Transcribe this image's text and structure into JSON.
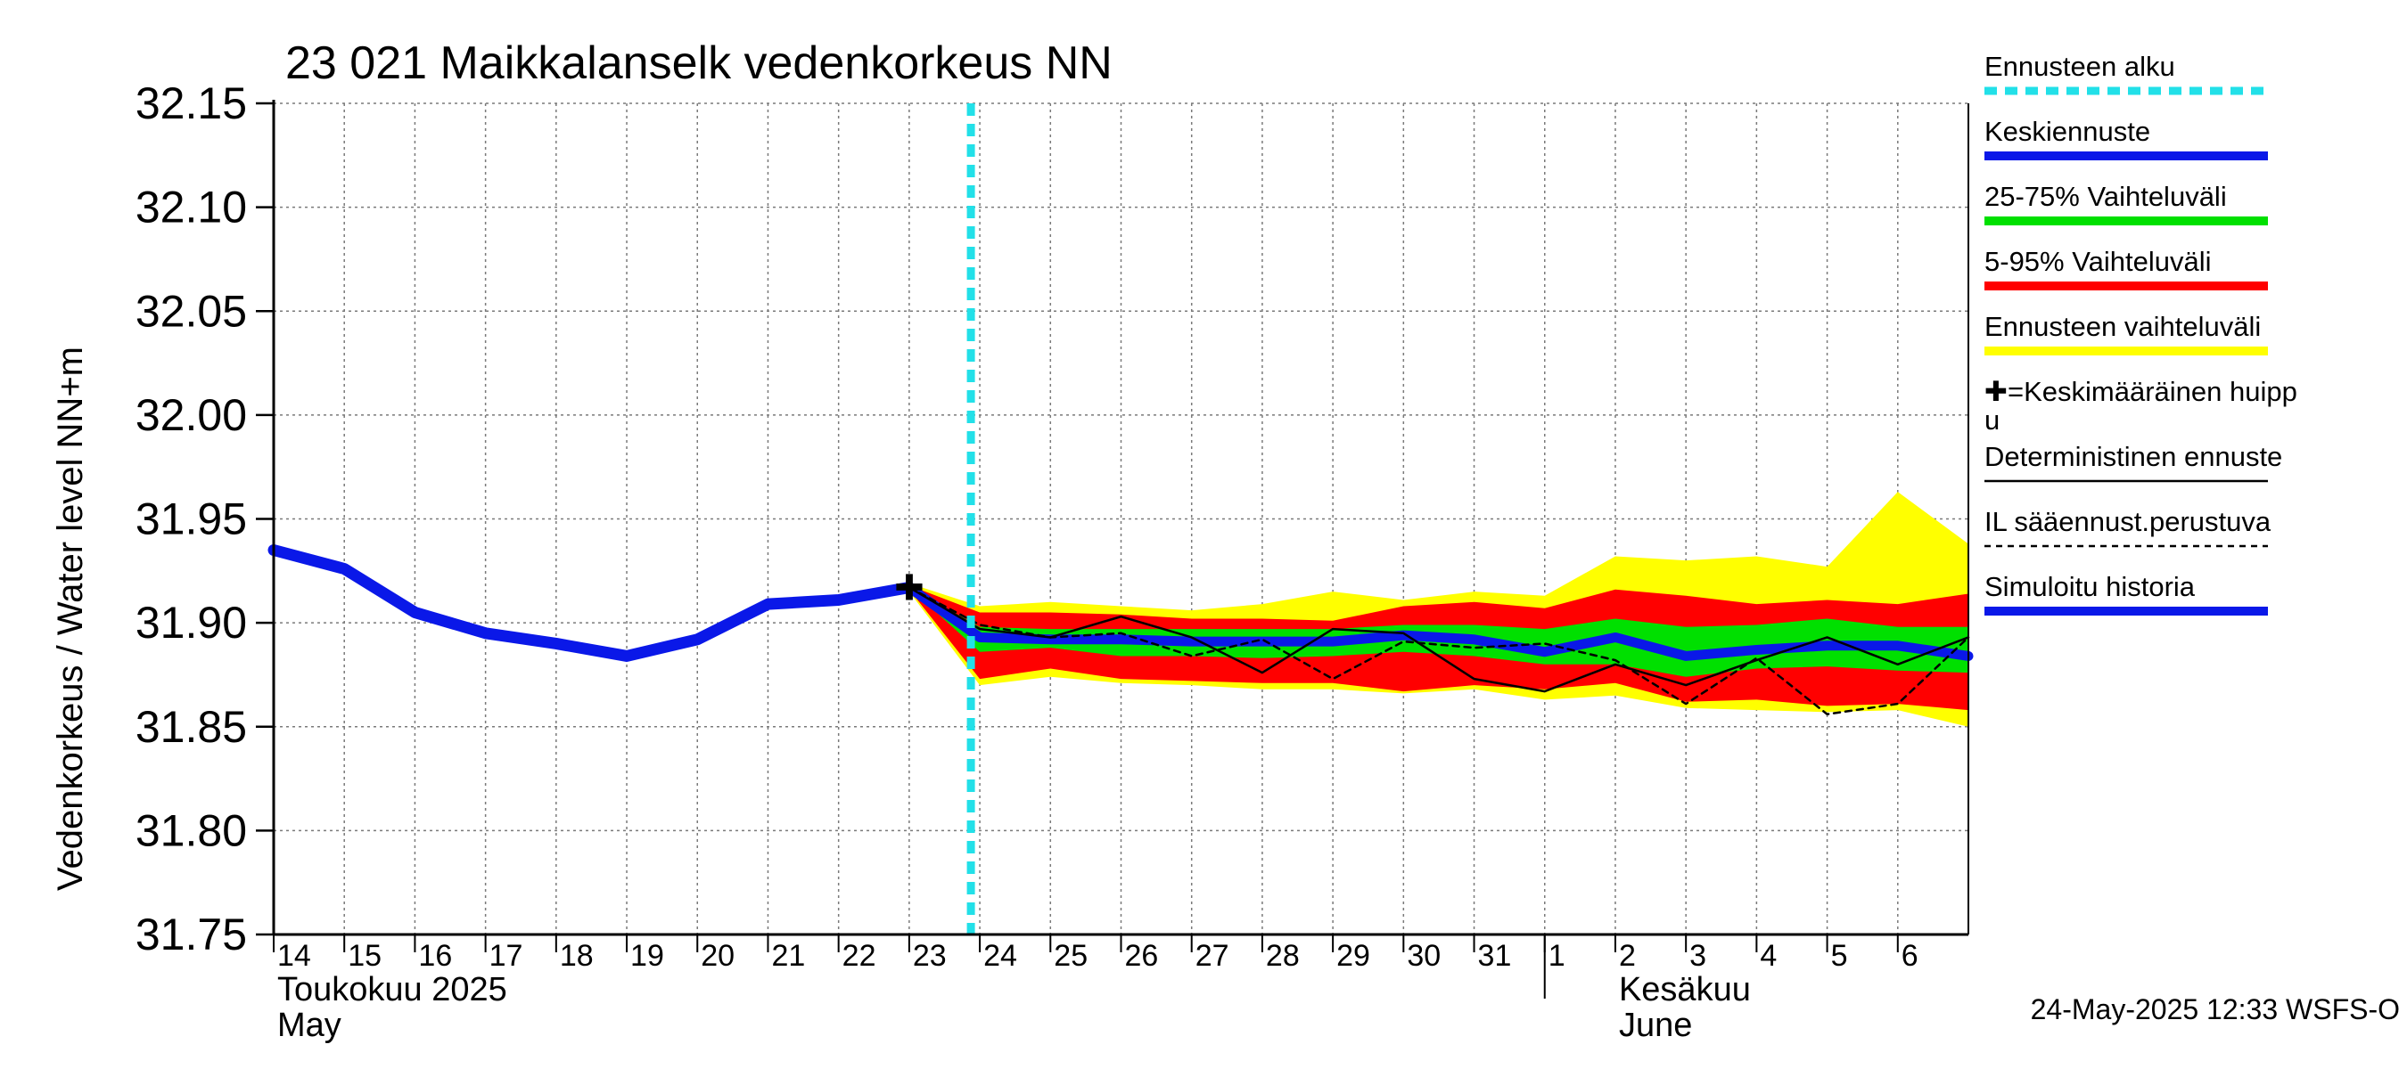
{
  "chart_data": {
    "type": "line",
    "title": "23 021 Maikkalanselk vedenkorkeus NN",
    "ylabel": "Vedenkorkeus / Water level   NN+m",
    "ylim": [
      31.75,
      32.15
    ],
    "y_ticks": [
      "31.75",
      "31.80",
      "31.85",
      "31.90",
      "31.95",
      "32.00",
      "32.05",
      "32.10",
      "32.15"
    ],
    "x_day_labels": [
      "14",
      "15",
      "16",
      "17",
      "18",
      "19",
      "20",
      "21",
      "22",
      "23",
      "24",
      "25",
      "26",
      "27",
      "28",
      "29",
      "30",
      "31",
      "1",
      "2",
      "3",
      "4",
      "5",
      "6"
    ],
    "x_range_days": [
      0,
      24
    ],
    "month_labels": [
      {
        "line1": "Toukokuu  2025",
        "line2": "May",
        "day_index": 0
      },
      {
        "line1": "Kesäkuu",
        "line2": "June",
        "day_index": 19
      }
    ],
    "month_divider_day_index": 18,
    "forecast_start_day_index": 10,
    "grid": true,
    "timestamp": "24-May-2025 12:33 WSFS-O",
    "colors": {
      "forecast_start": "#22e0e8",
      "mean_forecast": "#0a18e8",
      "band_25_75": "#00e000",
      "band_5_95": "#ff0000",
      "band_forecast_range": "#ffff00",
      "deterministic": "#000000",
      "simulated_history": "#0a18e8"
    },
    "legend": [
      {
        "label": "Ennusteen alku",
        "style": "cyan-dashed"
      },
      {
        "label": "Keskiennuste",
        "style": "blue-line"
      },
      {
        "label": "25-75% Vaihteluväli",
        "style": "green-line"
      },
      {
        "label": "5-95% Vaihteluväli",
        "style": "red-line"
      },
      {
        "label": "Ennusteen vaihteluväli",
        "style": "yellow-line"
      },
      {
        "label": "✚=Keskimääräinen huipp",
        "label2": "u",
        "style": "none"
      },
      {
        "label": "Deterministinen ennuste",
        "style": "black-thin"
      },
      {
        "label": "IL sääennust.perustuva",
        "style": "black-dashed"
      },
      {
        "label": "Simuloitu historia",
        "style": "blue-line"
      }
    ],
    "series": [
      {
        "name": "Simuloitu historia",
        "x": [
          0,
          1,
          2,
          3,
          4,
          5,
          6,
          7,
          8,
          9
        ],
        "values": [
          31.935,
          31.926,
          31.905,
          31.895,
          31.89,
          31.884,
          31.892,
          31.909,
          31.911,
          31.917
        ]
      },
      {
        "name": "Keskiennuste",
        "x": [
          9,
          10,
          11,
          12,
          13,
          14,
          15,
          16,
          17,
          18,
          19,
          20,
          21,
          22,
          23,
          24
        ],
        "values": [
          31.917,
          31.893,
          31.892,
          31.892,
          31.891,
          31.891,
          31.891,
          31.894,
          31.892,
          31.886,
          31.893,
          31.884,
          31.887,
          31.889,
          31.889,
          31.884
        ]
      },
      {
        "name": "Deterministinen ennuste",
        "x": [
          9,
          10,
          11,
          12,
          13,
          14,
          15,
          16,
          17,
          18,
          19,
          20,
          21,
          22,
          23,
          24
        ],
        "values": [
          31.917,
          31.897,
          31.893,
          31.903,
          31.893,
          31.876,
          31.897,
          31.895,
          31.873,
          31.867,
          31.88,
          31.87,
          31.882,
          31.893,
          31.88,
          31.893
        ]
      },
      {
        "name": "IL sääennust.perustuva",
        "x": [
          9,
          10,
          11,
          12,
          13,
          14,
          15,
          16,
          17,
          18,
          19,
          20,
          21,
          22,
          23,
          24
        ],
        "values": [
          31.917,
          31.899,
          31.893,
          31.895,
          31.884,
          31.892,
          31.873,
          31.891,
          31.888,
          31.89,
          31.882,
          31.861,
          31.883,
          31.856,
          31.861,
          31.893
        ]
      },
      {
        "name": "Ennusteen vaihteluväli",
        "x": [
          9,
          10,
          11,
          12,
          13,
          14,
          15,
          16,
          17,
          18,
          19,
          20,
          21,
          22,
          23,
          24
        ],
        "upper": [
          31.919,
          31.908,
          31.91,
          31.908,
          31.906,
          31.909,
          31.915,
          31.911,
          31.915,
          31.913,
          31.932,
          31.93,
          31.932,
          31.927,
          31.963,
          31.938
        ],
        "lower": [
          31.915,
          31.87,
          31.874,
          31.871,
          31.87,
          31.868,
          31.868,
          31.866,
          31.868,
          31.863,
          31.865,
          31.859,
          31.858,
          31.857,
          31.858,
          31.85
        ]
      },
      {
        "name": "5-95% Vaihteluväli",
        "x": [
          9,
          10,
          11,
          12,
          13,
          14,
          15,
          16,
          17,
          18,
          19,
          20,
          21,
          22,
          23,
          24
        ],
        "upper": [
          31.918,
          31.905,
          31.905,
          31.904,
          31.902,
          31.902,
          31.901,
          31.908,
          31.91,
          31.907,
          31.916,
          31.913,
          31.909,
          31.911,
          31.909,
          31.914
        ],
        "lower": [
          31.916,
          31.873,
          31.878,
          31.873,
          31.872,
          31.871,
          31.871,
          31.867,
          31.87,
          31.868,
          31.871,
          31.862,
          31.863,
          31.86,
          31.861,
          31.858
        ]
      },
      {
        "name": "25-75% Vaihteluväli",
        "x": [
          9,
          10,
          11,
          12,
          13,
          14,
          15,
          16,
          17,
          18,
          19,
          20,
          21,
          22,
          23,
          24
        ],
        "upper": [
          31.917,
          31.898,
          31.897,
          31.897,
          31.897,
          31.897,
          31.897,
          31.899,
          31.899,
          31.897,
          31.902,
          31.898,
          31.899,
          31.902,
          31.898,
          31.898
        ],
        "lower": [
          31.917,
          31.886,
          31.888,
          31.884,
          31.884,
          31.883,
          31.884,
          31.886,
          31.884,
          31.88,
          31.88,
          31.874,
          31.878,
          31.879,
          31.877,
          31.876
        ]
      }
    ],
    "mean_peak": {
      "label": "✚",
      "x": 9,
      "y": 31.917
    }
  }
}
